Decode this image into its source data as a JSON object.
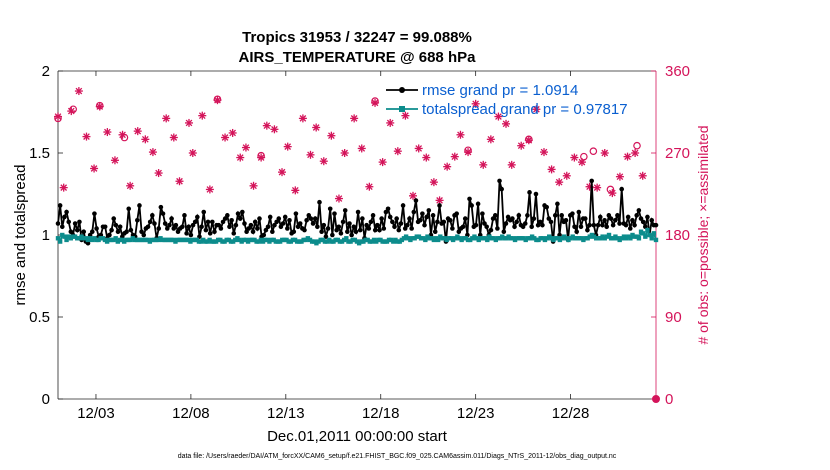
{
  "chart_data": {
    "type": "line",
    "title": "Tropics 31953 / 32247 = 99.088%",
    "subtitle": "AIRS_TEMPERATURE @ 688 hPa",
    "xlabel": "Dec.01,2011 00:00:00 start",
    "ylabel": "rmse and totalspread",
    "ylabel_right": "# of obs: o=possible; ×=assimilated",
    "footer": "data file: /Users/raeder/DAI/ATM_forcXX/CAM6_setup/f.e21.FHIST_BGC.f09_025.CAM6assim.011/Diags_NTrS_2011-12/obs_diag_output.nc",
    "xlim": [
      1,
      32.5
    ],
    "ylim": [
      0,
      2
    ],
    "ylim_right": [
      0,
      360
    ],
    "x_ticks": [
      3,
      8,
      13,
      18,
      23,
      28
    ],
    "x_tick_labels": [
      "12/03",
      "12/08",
      "12/13",
      "12/18",
      "12/23",
      "12/28"
    ],
    "y_ticks": [
      0,
      0.5,
      1,
      1.5,
      2
    ],
    "y_tick_labels": [
      "0",
      "0.5",
      "1",
      "1.5",
      "2"
    ],
    "y_ticks_right": [
      0,
      90,
      180,
      270,
      360
    ],
    "y_tick_labels_right": [
      "0",
      "90",
      "180",
      "270",
      "360"
    ],
    "grid": false,
    "legend_position": "top-right",
    "colors": {
      "rmse": "#000000",
      "spread": "#0c8c8c",
      "obs": "#d4145a",
      "legend_text": "#0a5fd0"
    },
    "series": [
      {
        "name": "rmse grand pr = 1.0914",
        "marker": "filled-circle",
        "y": [
          1.07,
          1.18,
          1.05,
          1.11,
          1.14,
          1.08,
          1.02,
          1.0,
          1.07,
          1.03,
          1.08,
          0.97,
          1.02,
          0.96,
          0.95,
          1.0,
          1.02,
          1.13,
          1.04,
          0.99,
          1.0,
          1.05,
          1.05,
          0.98,
          1.0,
          1.03,
          1.1,
          1.06,
          1.02,
          1.05,
          0.99,
          1.01,
          1.02,
          1.16,
          1.03,
          1.0,
          0.99,
          1.09,
          1.18,
          1.02,
          1.0,
          1.04,
          1.05,
          1.08,
          1.12,
          1.07,
          0.98,
          1.04,
          1.17,
          1.13,
          1.07,
          1.04,
          1.06,
          1.1,
          1.04,
          1.06,
          1.02,
          1.04,
          1.05,
          1.12,
          1.01,
          1.05,
          1.0,
          1.06,
          1.08,
          1.11,
          0.99,
          1.05,
          1.14,
          1.03,
          1.08,
          1.01,
          1.08,
          1.02,
          1.06,
          1.06,
          1.04,
          1.08,
          1.1,
          1.12,
          1.05,
          1.09,
          1.01,
          1.06,
          1.13,
          1.1,
          1.14,
          1.07,
          1.02,
          1.04,
          1.06,
          1.02,
          1.08,
          1.04,
          1.1,
          0.99,
          1.0,
          1.03,
          1.05,
          1.11,
          1.02,
          1.06,
          1.08,
          1.1,
          1.05,
          1.07,
          1.11,
          1.04,
          1.09,
          1.01,
          1.02,
          1.13,
          1.05,
          1.07,
          1.04,
          1.03,
          1.09,
          1.12,
          1.1,
          1.07,
          1.1,
          1.05,
          1.2,
          1.02,
          1.06,
          0.99,
          1.04,
          1.16,
          1.0,
          1.13,
          1.03,
          1.05,
          1.01,
          1.08,
          1.15,
          1.02,
          1.07,
          1.0,
          1.05,
          1.02,
          1.14,
          1.03,
          1.1,
          0.98,
          1.06,
          1.04,
          1.08,
          1.12,
          1.03,
          1.06,
          1.03,
          1.1,
          1.04,
          1.14,
          1.16,
          1.11,
          1.08,
          1.05,
          1.1,
          1.03,
          1.07,
          1.18,
          1.04,
          1.06,
          1.1,
          1.04,
          1.14,
          1.21,
          1.08,
          1.09,
          1.13,
          1.06,
          1.11,
          1.15,
          1.0,
          1.12,
          1.02,
          1.08,
          1.18,
          1.07,
          1.08,
          0.96,
          1.1,
          1.09,
          1.04,
          1.12,
          1.13,
          1.02,
          1.04,
          1.05,
          1.1,
          1.0,
          1.22,
          1.18,
          1.05,
          1.06,
          1.19,
          1.0,
          1.13,
          1.07,
          1.05,
          1.0,
          1.03,
          1.1,
          1.12,
          1.04,
          1.33,
          1.28,
          1.02,
          1.07,
          1.11,
          1.09,
          1.1,
          1.05,
          1.08,
          1.12,
          1.06,
          1.05,
          1.07,
          1.12,
          1.26,
          1.05,
          1.1,
          1.25,
          1.06,
          1.08,
          1.06,
          1.18,
          1.17,
          1.1,
          1.08,
          0.96,
          1.12,
          1.19,
          1.0,
          1.12,
          1.08,
          1.09,
          0.97,
          1.12,
          1.13,
          1.05,
          1.02,
          1.14,
          1.05,
          1.1,
          1.1,
          1.03,
          1.06,
          1.33,
          1.06,
          1.0,
          1.06,
          1.11,
          1.06,
          1.09,
          1.05,
          1.12,
          1.1,
          1.06,
          1.09,
          1.12,
          1.07,
          1.28,
          1.07,
          1.06,
          1.11,
          1.04,
          1.09,
          1.06,
          1.12,
          1.15,
          1.1,
          1.08,
          1.05,
          1.11,
          1.0,
          1.09,
          1.06,
          1.06
        ]
      },
      {
        "name": "totalspread grand pr = 0.97817",
        "marker": "filled-square",
        "y": [
          0.98,
          0.96,
          1.0,
          0.99,
          0.97,
          0.99,
          0.98,
          0.99,
          0.99,
          0.98,
          0.98,
          0.99,
          0.98,
          0.98,
          0.97,
          0.98,
          0.97,
          0.98,
          0.97,
          0.97,
          0.98,
          0.98,
          0.97,
          0.96,
          0.97,
          0.97,
          0.97,
          0.98,
          0.96,
          0.97,
          0.97,
          0.96,
          0.97,
          0.97,
          0.97,
          0.98,
          0.97,
          0.97,
          0.97,
          0.97,
          0.97,
          0.97,
          0.97,
          0.96,
          0.97,
          0.97,
          0.97,
          0.97,
          0.98,
          0.97,
          0.97,
          0.97,
          0.97,
          0.97,
          0.97,
          0.96,
          0.97,
          0.97,
          0.97,
          0.97,
          0.97,
          0.97,
          0.96,
          0.97,
          0.97,
          0.97,
          0.96,
          0.96,
          0.97,
          0.96,
          0.96,
          0.97,
          0.96,
          0.96,
          0.96,
          0.97,
          0.97,
          0.96,
          0.96,
          0.97,
          0.97,
          0.96,
          0.96,
          0.97,
          0.98,
          0.97,
          0.96,
          0.97,
          0.97,
          0.96,
          0.97,
          0.97,
          0.97,
          0.96,
          0.96,
          0.97,
          0.96,
          0.97,
          0.97,
          0.96,
          0.97,
          0.97,
          0.96,
          0.96,
          0.96,
          0.97,
          0.97,
          0.97,
          0.96,
          0.96,
          0.97,
          0.97,
          0.96,
          0.96,
          0.96,
          0.97,
          0.97,
          0.98,
          0.97,
          0.96,
          0.96,
          0.95,
          0.96,
          0.97,
          0.97,
          0.96,
          0.96,
          0.97,
          0.96,
          0.96,
          0.97,
          0.97,
          0.96,
          0.96,
          0.97,
          0.98,
          0.96,
          0.96,
          0.97,
          0.97,
          0.96,
          0.95,
          0.96,
          0.96,
          0.97,
          0.97,
          0.96,
          0.96,
          0.97,
          0.96,
          0.97,
          0.97,
          0.96,
          0.96,
          0.96,
          0.97,
          0.97,
          0.96,
          0.97,
          0.96,
          0.96,
          0.97,
          0.98,
          0.99,
          0.98,
          0.97,
          0.98,
          0.98,
          0.99,
          0.99,
          0.98,
          0.98,
          0.97,
          0.99,
          0.98,
          0.98,
          0.97,
          0.98,
          0.97,
          0.99,
          0.98,
          0.98,
          0.97,
          0.98,
          0.98,
          0.97,
          0.98,
          0.99,
          0.98,
          0.97,
          0.98,
          0.98,
          0.97,
          0.97,
          0.98,
          0.99,
          0.98,
          0.97,
          0.98,
          0.98,
          0.98,
          0.97,
          0.99,
          0.98,
          0.98,
          0.97,
          0.98,
          0.98,
          0.99,
          0.98,
          0.98,
          0.99,
          0.98,
          0.98,
          0.97,
          0.98,
          0.98,
          0.98,
          0.98,
          0.97,
          0.98,
          0.98,
          0.99,
          0.98,
          0.97,
          0.97,
          0.98,
          0.98,
          0.97,
          0.98,
          0.99,
          0.98,
          0.97,
          0.98,
          0.98,
          0.97,
          0.98,
          0.99,
          0.98,
          0.97,
          0.98,
          0.99,
          0.98,
          0.98,
          0.98,
          0.98,
          0.97,
          0.98,
          0.98,
          0.99,
          1.0,
          0.99,
          0.98,
          0.98,
          0.98,
          0.99,
          0.98,
          0.99,
          1.0,
          0.98,
          0.98,
          0.99,
          0.98,
          0.97,
          0.98,
          0.99,
          0.98,
          0.99,
          0.98,
          1.0,
          0.99,
          0.99,
          0.98,
          1.02,
          1.01,
          0.99,
          1.03,
          1.0,
          0.98,
          1.01,
          0.97
        ]
      }
    ],
    "obs_assimilated": [
      [
        1.0,
        310
      ],
      [
        1.3,
        232
      ],
      [
        1.7,
        316
      ],
      [
        2.1,
        338
      ],
      [
        2.5,
        288
      ],
      [
        2.9,
        253
      ],
      [
        3.2,
        321
      ],
      [
        3.6,
        293
      ],
      [
        4.0,
        262
      ],
      [
        4.4,
        290
      ],
      [
        4.8,
        234
      ],
      [
        5.2,
        294
      ],
      [
        5.6,
        285
      ],
      [
        6.0,
        271
      ],
      [
        6.3,
        248
      ],
      [
        6.7,
        308
      ],
      [
        7.1,
        287
      ],
      [
        7.4,
        239
      ],
      [
        7.9,
        303
      ],
      [
        8.1,
        270
      ],
      [
        8.6,
        311
      ],
      [
        9.0,
        230
      ],
      [
        9.4,
        328
      ],
      [
        9.8,
        287
      ],
      [
        10.2,
        292
      ],
      [
        10.6,
        265
      ],
      [
        10.9,
        276
      ],
      [
        11.3,
        234
      ],
      [
        11.7,
        265
      ],
      [
        12.0,
        300
      ],
      [
        12.4,
        296
      ],
      [
        12.8,
        249
      ],
      [
        13.1,
        277
      ],
      [
        13.5,
        229
      ],
      [
        13.9,
        308
      ],
      [
        14.3,
        268
      ],
      [
        14.6,
        298
      ],
      [
        15.0,
        261
      ],
      [
        15.4,
        289
      ],
      [
        15.8,
        220
      ],
      [
        16.1,
        270
      ],
      [
        16.6,
        308
      ],
      [
        17.0,
        275
      ],
      [
        17.4,
        233
      ],
      [
        17.7,
        325
      ],
      [
        18.1,
        260
      ],
      [
        18.5,
        303
      ],
      [
        18.9,
        272
      ],
      [
        19.3,
        311
      ],
      [
        19.7,
        223
      ],
      [
        20.0,
        275
      ],
      [
        20.4,
        265
      ],
      [
        20.8,
        238
      ],
      [
        21.1,
        218
      ],
      [
        21.5,
        255
      ],
      [
        21.9,
        266
      ],
      [
        22.2,
        290
      ],
      [
        22.6,
        271
      ],
      [
        23.0,
        324
      ],
      [
        23.4,
        257
      ],
      [
        23.8,
        285
      ],
      [
        24.2,
        310
      ],
      [
        24.6,
        302
      ],
      [
        24.9,
        257
      ],
      [
        25.4,
        278
      ],
      [
        25.8,
        284
      ],
      [
        26.2,
        318
      ],
      [
        26.6,
        271
      ],
      [
        27.0,
        252
      ],
      [
        27.4,
        238
      ],
      [
        27.8,
        245
      ],
      [
        28.2,
        265
      ],
      [
        28.6,
        260
      ],
      [
        29.0,
        233
      ],
      [
        29.4,
        232
      ],
      [
        29.8,
        270
      ],
      [
        30.2,
        226
      ],
      [
        30.6,
        244
      ],
      [
        31.0,
        266
      ],
      [
        31.4,
        270
      ],
      [
        31.8,
        245
      ]
    ],
    "obs_possible": [
      [
        1.0,
        308
      ],
      [
        1.8,
        318
      ],
      [
        3.2,
        322
      ],
      [
        4.5,
        287
      ],
      [
        9.4,
        329
      ],
      [
        11.7,
        267
      ],
      [
        17.7,
        327
      ],
      [
        22.6,
        273
      ],
      [
        25.8,
        285
      ],
      [
        28.7,
        266
      ],
      [
        29.2,
        272
      ],
      [
        30.1,
        230
      ],
      [
        31.5,
        278
      ]
    ]
  }
}
